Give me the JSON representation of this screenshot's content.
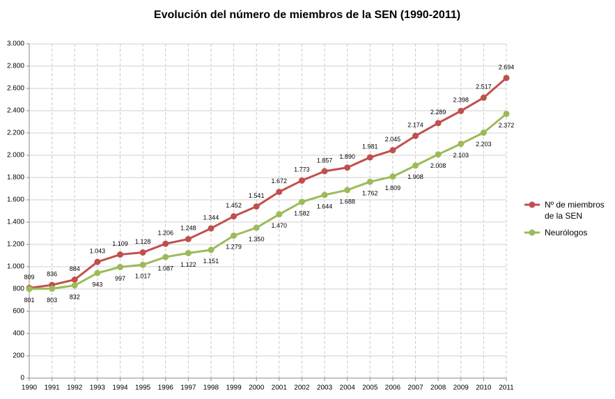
{
  "chart_data": {
    "type": "line",
    "title": "Evolución del número de miembros de la SEN (1990-2011)",
    "categories": [
      "1990",
      "1991",
      "1992",
      "1993",
      "1994",
      "1995",
      "1996",
      "1997",
      "1998",
      "1999",
      "2000",
      "2001",
      "2002",
      "2003",
      "2004",
      "2005",
      "2006",
      "2007",
      "2008",
      "2009",
      "2010",
      "2011"
    ],
    "series": [
      {
        "name": "Nº de miembros de la SEN",
        "color": "#c0504d",
        "values": [
          809,
          836,
          884,
          1043,
          1109,
          1128,
          1206,
          1248,
          1344,
          1452,
          1541,
          1672,
          1773,
          1857,
          1890,
          1981,
          2045,
          2174,
          2289,
          2398,
          2517,
          2694
        ],
        "value_labels": [
          "809",
          "836",
          "884",
          "1.043",
          "1.109",
          "1.128",
          "1.206",
          "1.248",
          "1.344",
          "1.452",
          "1.541",
          "1.672",
          "1.773",
          "1.857",
          "1.890",
          "1.981",
          "2.045",
          "2.174",
          "2.289",
          "2.398",
          "2.517",
          "2.694"
        ]
      },
      {
        "name": "Neurólogos",
        "color": "#9bbb59",
        "values": [
          801,
          803,
          832,
          943,
          997,
          1017,
          1087,
          1122,
          1151,
          1279,
          1350,
          1470,
          1582,
          1644,
          1688,
          1762,
          1809,
          1908,
          2008,
          2103,
          2203,
          2372
        ],
        "value_labels": [
          "801",
          "803",
          "832",
          "943",
          "997",
          "1.017",
          "1.087",
          "1.122",
          "1.151",
          "1.279",
          "1.350",
          "1.470",
          "1.582",
          "1.644",
          "1.688",
          "1.762",
          "1.809",
          "1.908",
          "2.008",
          "2.103",
          "2.203",
          "2.372"
        ]
      }
    ],
    "ylim": [
      0,
      3000
    ],
    "yticks": [
      0,
      200,
      400,
      600,
      800,
      {
        "value": 1000,
        "label": "1.000"
      },
      {
        "value": 1200,
        "label": "1.200"
      },
      {
        "value": 1400,
        "label": "1.400"
      },
      {
        "value": 1600,
        "label": "1.600"
      },
      {
        "value": 1800,
        "label": "1.800"
      },
      {
        "value": 2000,
        "label": "2.000"
      },
      {
        "value": 2200,
        "label": "2.200"
      },
      {
        "value": 2400,
        "label": "2.400"
      },
      {
        "value": 2600,
        "label": "2.600"
      },
      {
        "value": 2800,
        "label": "2.800"
      },
      {
        "value": 3000,
        "label": "3.000"
      }
    ],
    "grid": true,
    "legend": "right"
  }
}
